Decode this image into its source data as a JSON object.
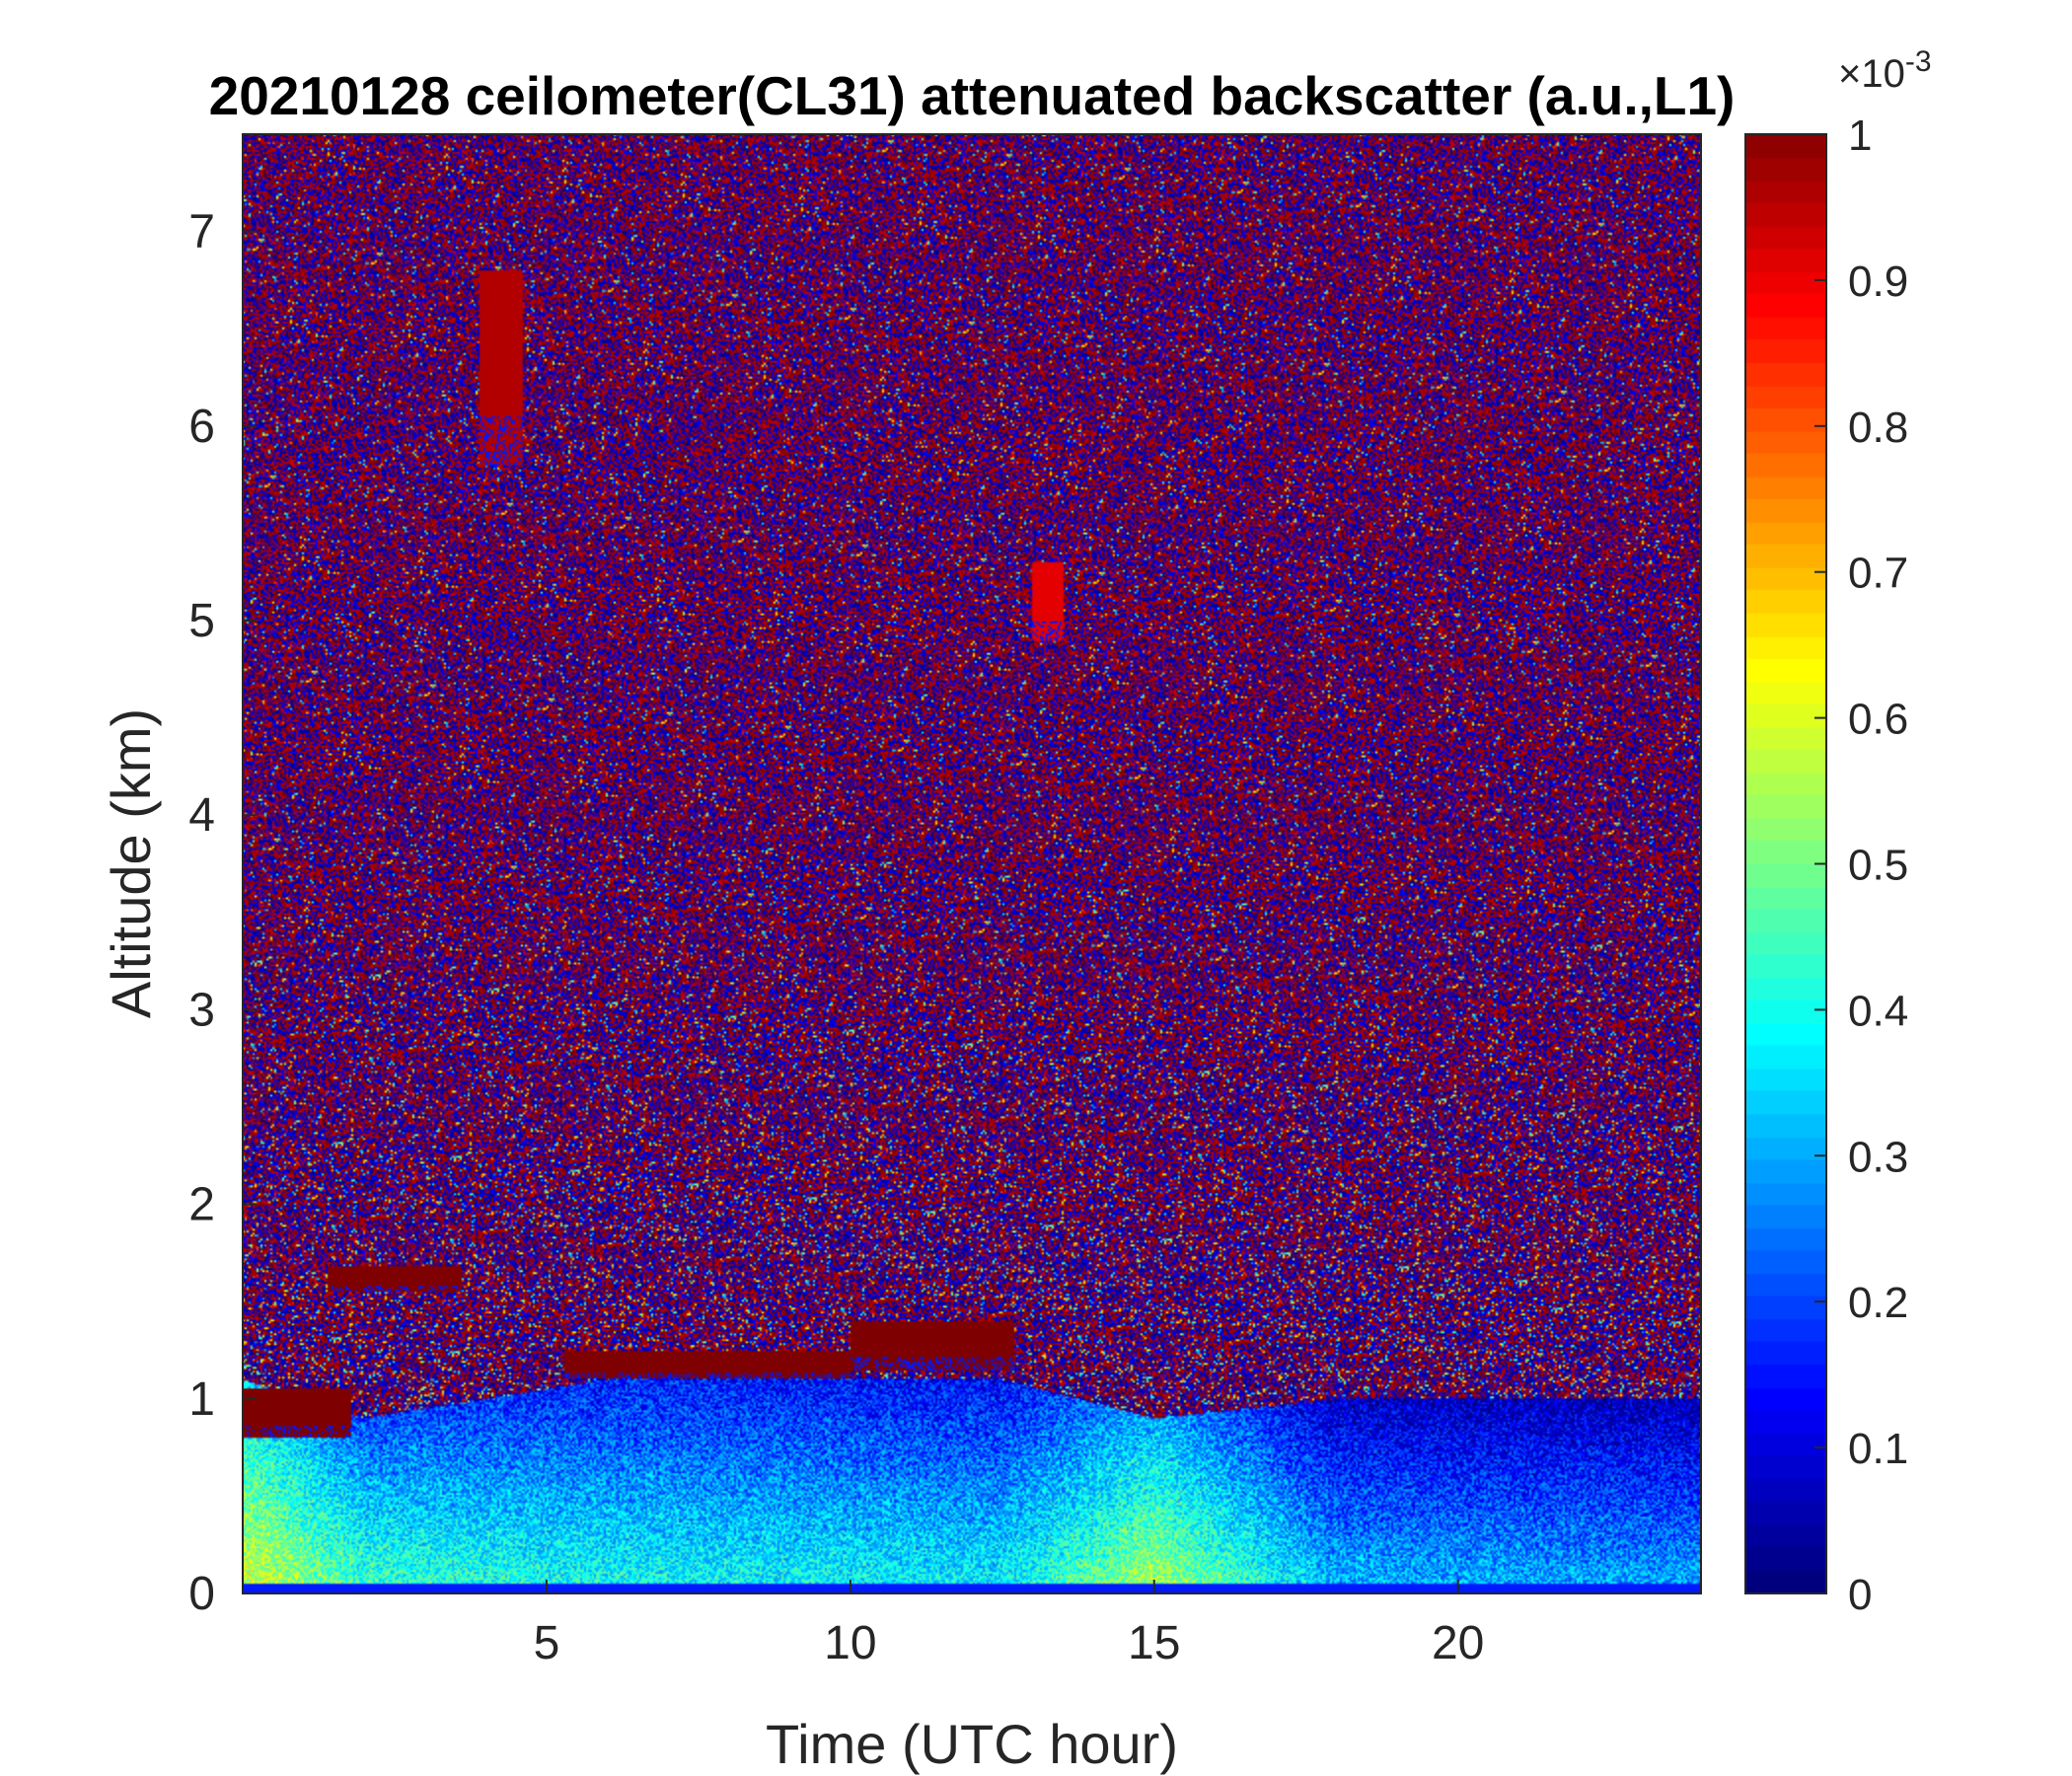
{
  "chart_data": {
    "type": "heatmap",
    "title": "20210128 ceilometer(CL31) attenuated backscatter (a.u.,L1)",
    "xlabel": "Time (UTC hour)",
    "ylabel": "Altitude (km)",
    "xlim": [
      0,
      24
    ],
    "ylim": [
      0,
      7.5
    ],
    "x_ticks": [
      5,
      10,
      15,
      20
    ],
    "y_ticks": [
      0,
      1,
      2,
      3,
      4,
      5,
      6,
      7
    ],
    "colorbar": {
      "colormap": "jet",
      "limits": [
        0,
        1
      ],
      "ticks": [
        0,
        0.1,
        0.2,
        0.3,
        0.4,
        0.5,
        0.6,
        0.7,
        0.8,
        0.9,
        1
      ],
      "multiplier": "×10",
      "exponent": "-3"
    },
    "features": [
      {
        "t_start": 0.0,
        "t_end": 1.8,
        "alt_bottom": 0.8,
        "alt_top": 1.05,
        "value": 1.0
      },
      {
        "t_start": 1.4,
        "t_end": 3.6,
        "alt_bottom": 1.55,
        "alt_top": 1.68,
        "value": 1.0
      },
      {
        "t_start": 5.3,
        "t_end": 10.0,
        "alt_bottom": 1.1,
        "alt_top": 1.25,
        "value": 1.0
      },
      {
        "t_start": 10.0,
        "t_end": 12.7,
        "alt_bottom": 1.15,
        "alt_top": 1.4,
        "value": 1.0
      },
      {
        "t_start": 3.9,
        "t_end": 4.6,
        "alt_bottom": 5.8,
        "alt_top": 6.8,
        "value": 0.95
      },
      {
        "t_start": 13.0,
        "t_end": 13.5,
        "alt_bottom": 4.9,
        "alt_top": 5.3,
        "value": 0.9
      }
    ],
    "boundary_layer_profile": [
      {
        "t": 0,
        "top_km": 1.1,
        "near_surface_value": 0.6
      },
      {
        "t": 2,
        "top_km": 0.9,
        "near_surface_value": 0.45
      },
      {
        "t": 6,
        "top_km": 1.1,
        "near_surface_value": 0.4
      },
      {
        "t": 12.5,
        "top_km": 1.1,
        "near_surface_value": 0.38
      },
      {
        "t": 15,
        "top_km": 0.9,
        "near_surface_value": 0.55
      },
      {
        "t": 18,
        "top_km": 1.0,
        "near_surface_value": 0.32
      },
      {
        "t": 24,
        "top_km": 1.0,
        "near_surface_value": 0.3
      }
    ]
  }
}
